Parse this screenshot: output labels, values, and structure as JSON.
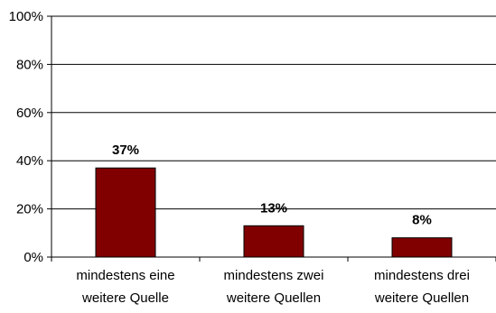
{
  "chart_data": {
    "type": "bar",
    "categories": [
      [
        "mindestens eine",
        "weitere Quelle"
      ],
      [
        "mindestens zwei",
        "weitere Quellen"
      ],
      [
        "mindestens drei",
        "weitere Quellen"
      ]
    ],
    "values": [
      37,
      13,
      8
    ],
    "data_labels": [
      "37%",
      "13%",
      "8%"
    ],
    "y_ticks": [
      {
        "value": 0,
        "label": "0%"
      },
      {
        "value": 20,
        "label": "20%"
      },
      {
        "value": 40,
        "label": "40%"
      },
      {
        "value": 60,
        "label": "60%"
      },
      {
        "value": 80,
        "label": "80%"
      },
      {
        "value": 100,
        "label": "100%"
      }
    ],
    "ylim": [
      0,
      100
    ],
    "grid": true,
    "legend": "none",
    "bar_color": "#800000",
    "title": "",
    "xlabel": "",
    "ylabel": ""
  }
}
